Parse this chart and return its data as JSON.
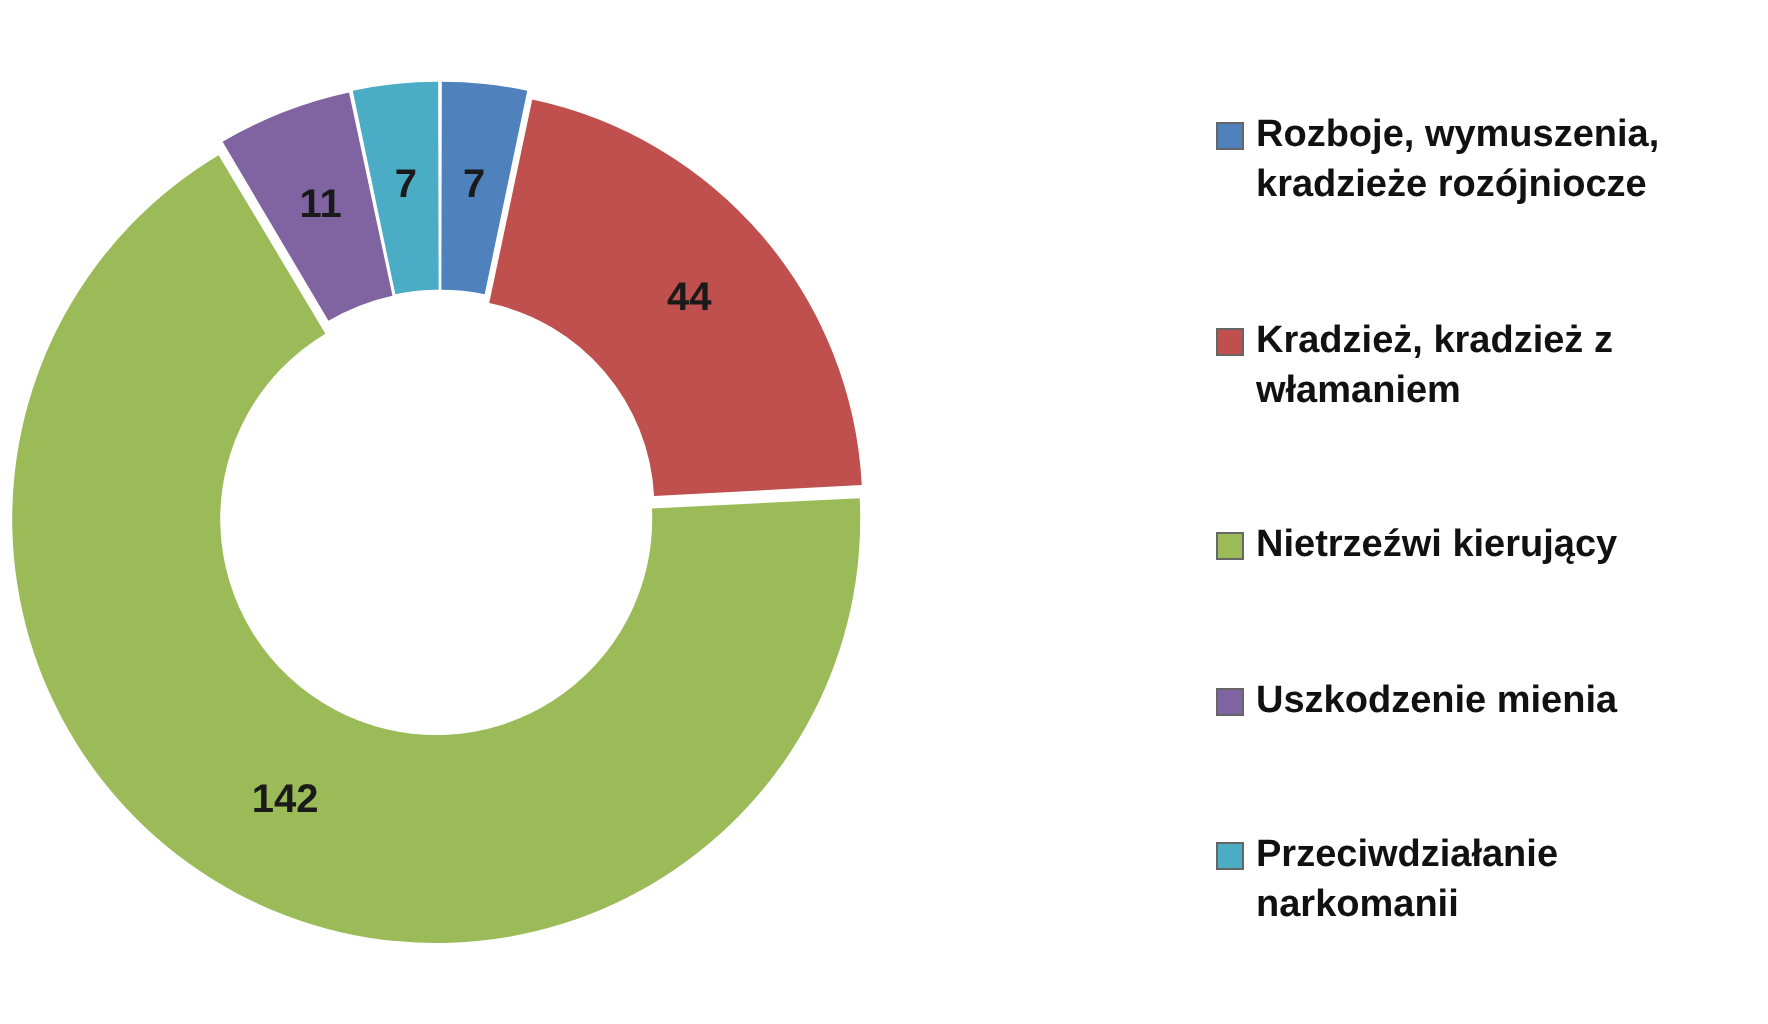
{
  "chart_data": {
    "type": "donut",
    "categories": [
      "Rozboje, wymuszenia, kradzieże rozójniocze",
      "Kradzież, kradzież z włamaniem",
      "Nietrzeźwi kierujący",
      "Uszkodzenie mienia",
      "Przeciwdziałanie narkomanii"
    ],
    "values": [
      7,
      44,
      142,
      11,
      7
    ],
    "colors": [
      "#4f81bd",
      "#c0504d",
      "#9bbb59",
      "#8064a2",
      "#4bacc6"
    ],
    "data_labels": true,
    "legend": "right"
  }
}
